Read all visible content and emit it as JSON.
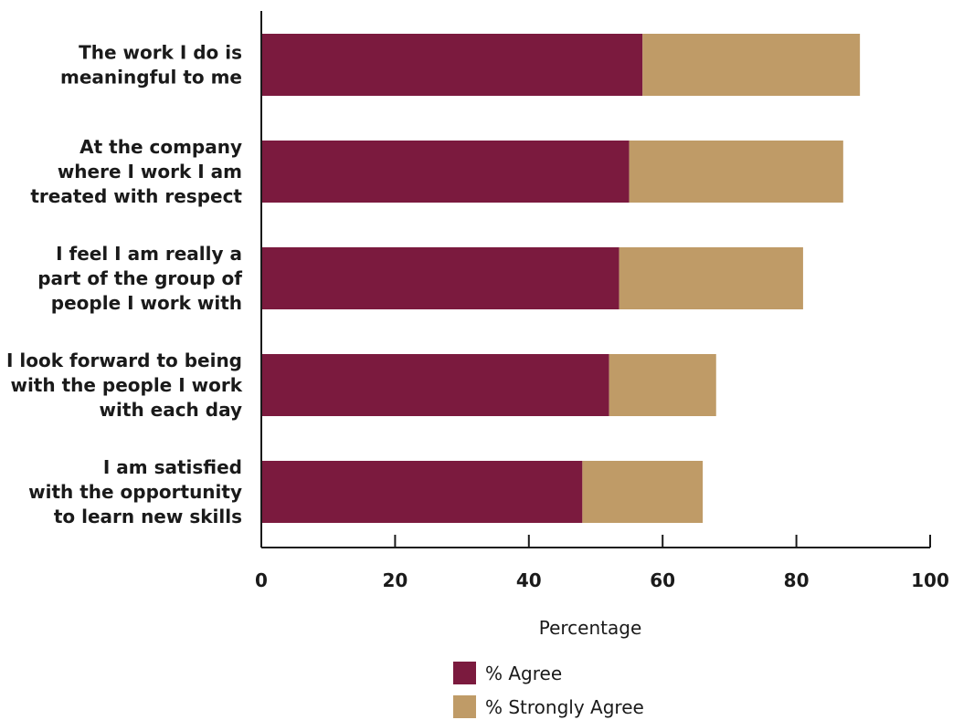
{
  "chart_data": {
    "type": "bar",
    "orientation": "horizontal",
    "stacked": true,
    "title": "",
    "xlabel": "Percentage",
    "ylabel": "",
    "xlim": [
      0,
      100
    ],
    "x_ticks": [
      0,
      20,
      40,
      60,
      80,
      100
    ],
    "grid": false,
    "legend_position": "bottom",
    "categories": [
      [
        "The work I do is",
        "meaningful to me"
      ],
      [
        "At the company",
        "where I work I am",
        "treated with respect"
      ],
      [
        "I feel I am really a",
        "part of the group of",
        "people I work with"
      ],
      [
        "I look forward to being",
        "with the people I work",
        "with each day"
      ],
      [
        "I am satisfied",
        "with the opportunity",
        "to learn new skills"
      ]
    ],
    "series": [
      {
        "name": "% Agree",
        "color": "#7b1a3e",
        "values": [
          57,
          55,
          53.5,
          52,
          48
        ]
      },
      {
        "name": "% Strongly Agree",
        "color": "#bf9b67",
        "values": [
          32.5,
          32,
          27.5,
          16,
          18
        ]
      }
    ]
  }
}
